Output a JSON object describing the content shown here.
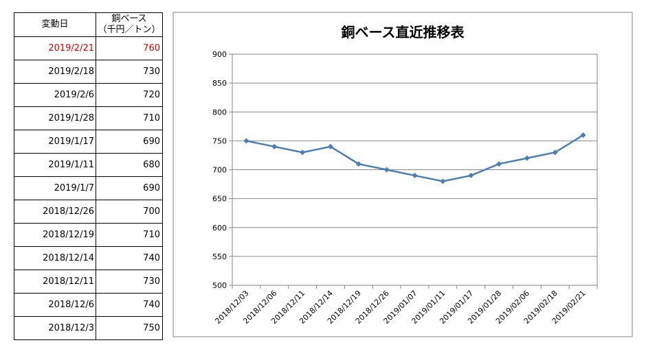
{
  "table": {
    "header_date": "変動日",
    "header_value_line1": "銅ベース",
    "header_value_line2": "（千円／トン）",
    "rows": [
      {
        "date": "2019/2/21",
        "value": "760",
        "highlight": true
      },
      {
        "date": "2019/2/18",
        "value": "730"
      },
      {
        "date": "2019/2/6",
        "value": "720"
      },
      {
        "date": "2019/1/28",
        "value": "710"
      },
      {
        "date": "2019/1/17",
        "value": "690"
      },
      {
        "date": "2019/1/11",
        "value": "680"
      },
      {
        "date": "2019/1/7",
        "value": "690"
      },
      {
        "date": "2018/12/26",
        "value": "700"
      },
      {
        "date": "2018/12/19",
        "value": "710"
      },
      {
        "date": "2018/12/14",
        "value": "740"
      },
      {
        "date": "2018/12/11",
        "value": "730"
      },
      {
        "date": "2018/12/6",
        "value": "740"
      },
      {
        "date": "2018/12/3",
        "value": "750"
      }
    ],
    "highlight_color": "#e00000"
  },
  "chart_data": {
    "type": "line",
    "title": "銅ベース直近推移表",
    "categories": [
      "2018/12/03",
      "2018/12/06",
      "2018/12/11",
      "2018/12/14",
      "2018/12/19",
      "2018/12/26",
      "2019/01/07",
      "2019/01/11",
      "2019/01/17",
      "2019/01/28",
      "2019/02/06",
      "2019/02/18",
      "2019/02/21"
    ],
    "values": [
      750,
      740,
      730,
      740,
      710,
      700,
      690,
      680,
      690,
      710,
      720,
      730,
      760
    ],
    "yticks": [
      "500",
      "550",
      "600",
      "650",
      "700",
      "750",
      "800",
      "850",
      "900"
    ],
    "ylim": [
      500,
      900
    ],
    "grid": true,
    "legend": "none",
    "line_color": "#4a7ebb"
  }
}
